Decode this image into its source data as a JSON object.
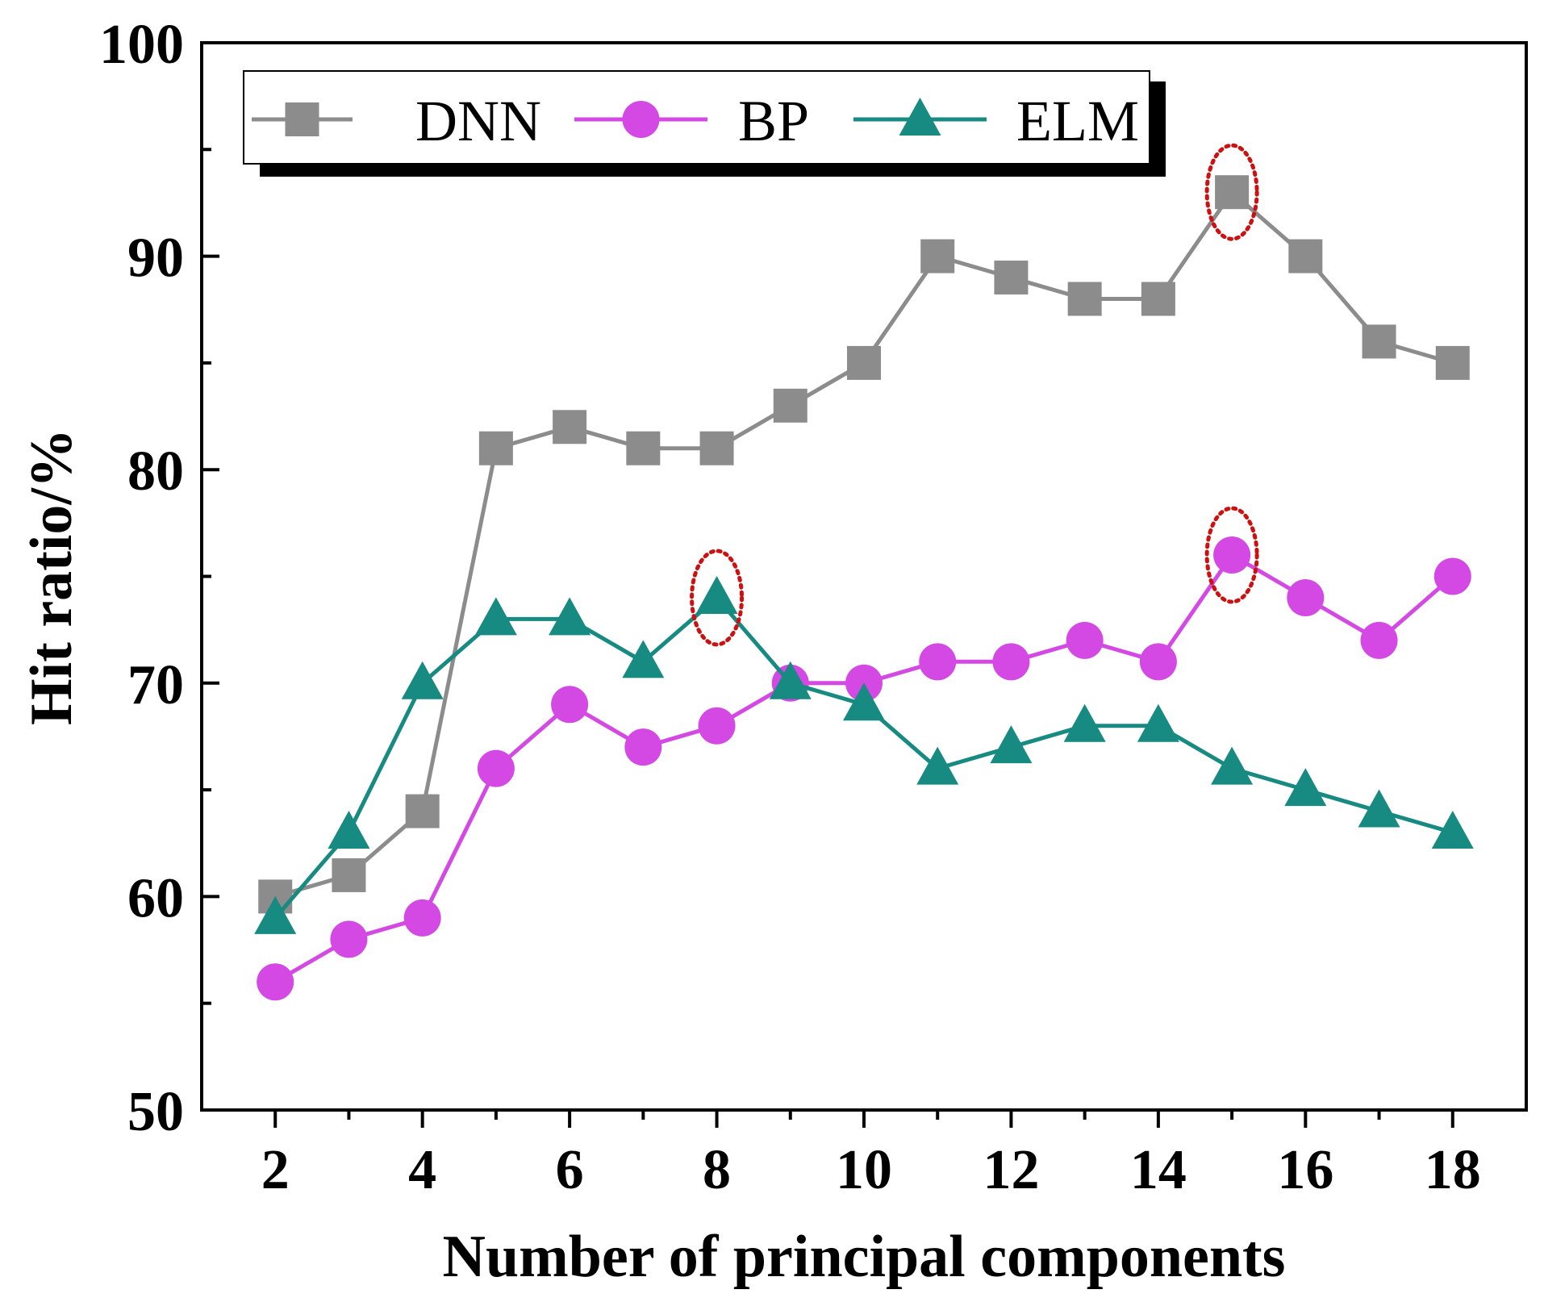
{
  "chart_data": {
    "type": "line",
    "title": "",
    "xlabel": "Number of principal components",
    "ylabel": "Hit ratio/%",
    "xlim": [
      1,
      19
    ],
    "ylim": [
      50,
      100
    ],
    "xticks": [
      2,
      4,
      6,
      8,
      10,
      12,
      14,
      16,
      18
    ],
    "yticks": [
      50,
      60,
      70,
      80,
      90,
      100
    ],
    "grid": false,
    "legend_position": "top-left",
    "x": [
      2,
      3,
      4,
      5,
      6,
      7,
      8,
      9,
      10,
      11,
      12,
      13,
      14,
      15,
      16,
      17,
      18
    ],
    "series": [
      {
        "name": "DNN",
        "marker": "square",
        "color": "#8c8c8c",
        "values": [
          60,
          61,
          64,
          81,
          82,
          81,
          81,
          83,
          85,
          90,
          89,
          88,
          88,
          93,
          90,
          86,
          85
        ]
      },
      {
        "name": "BP",
        "marker": "circle",
        "color": "#d448e3",
        "values": [
          56,
          58,
          59,
          66,
          69,
          67,
          68,
          70,
          70,
          71,
          71,
          72,
          71,
          76,
          74,
          72,
          75
        ]
      },
      {
        "name": "ELM",
        "marker": "triangle",
        "color": "#178a82",
        "values": [
          59,
          63,
          70,
          73,
          73,
          71,
          74,
          70,
          69,
          66,
          67,
          68,
          68,
          66,
          65,
          64,
          63
        ]
      }
    ],
    "annotations": [
      {
        "type": "ellipse-highlight",
        "color": "#cc1111",
        "series": "DNN",
        "x": 15,
        "y": 93
      },
      {
        "type": "ellipse-highlight",
        "color": "#cc1111",
        "series": "BP",
        "x": 15,
        "y": 76
      },
      {
        "type": "ellipse-highlight",
        "color": "#cc1111",
        "series": "ELM",
        "x": 8,
        "y": 74
      }
    ]
  }
}
